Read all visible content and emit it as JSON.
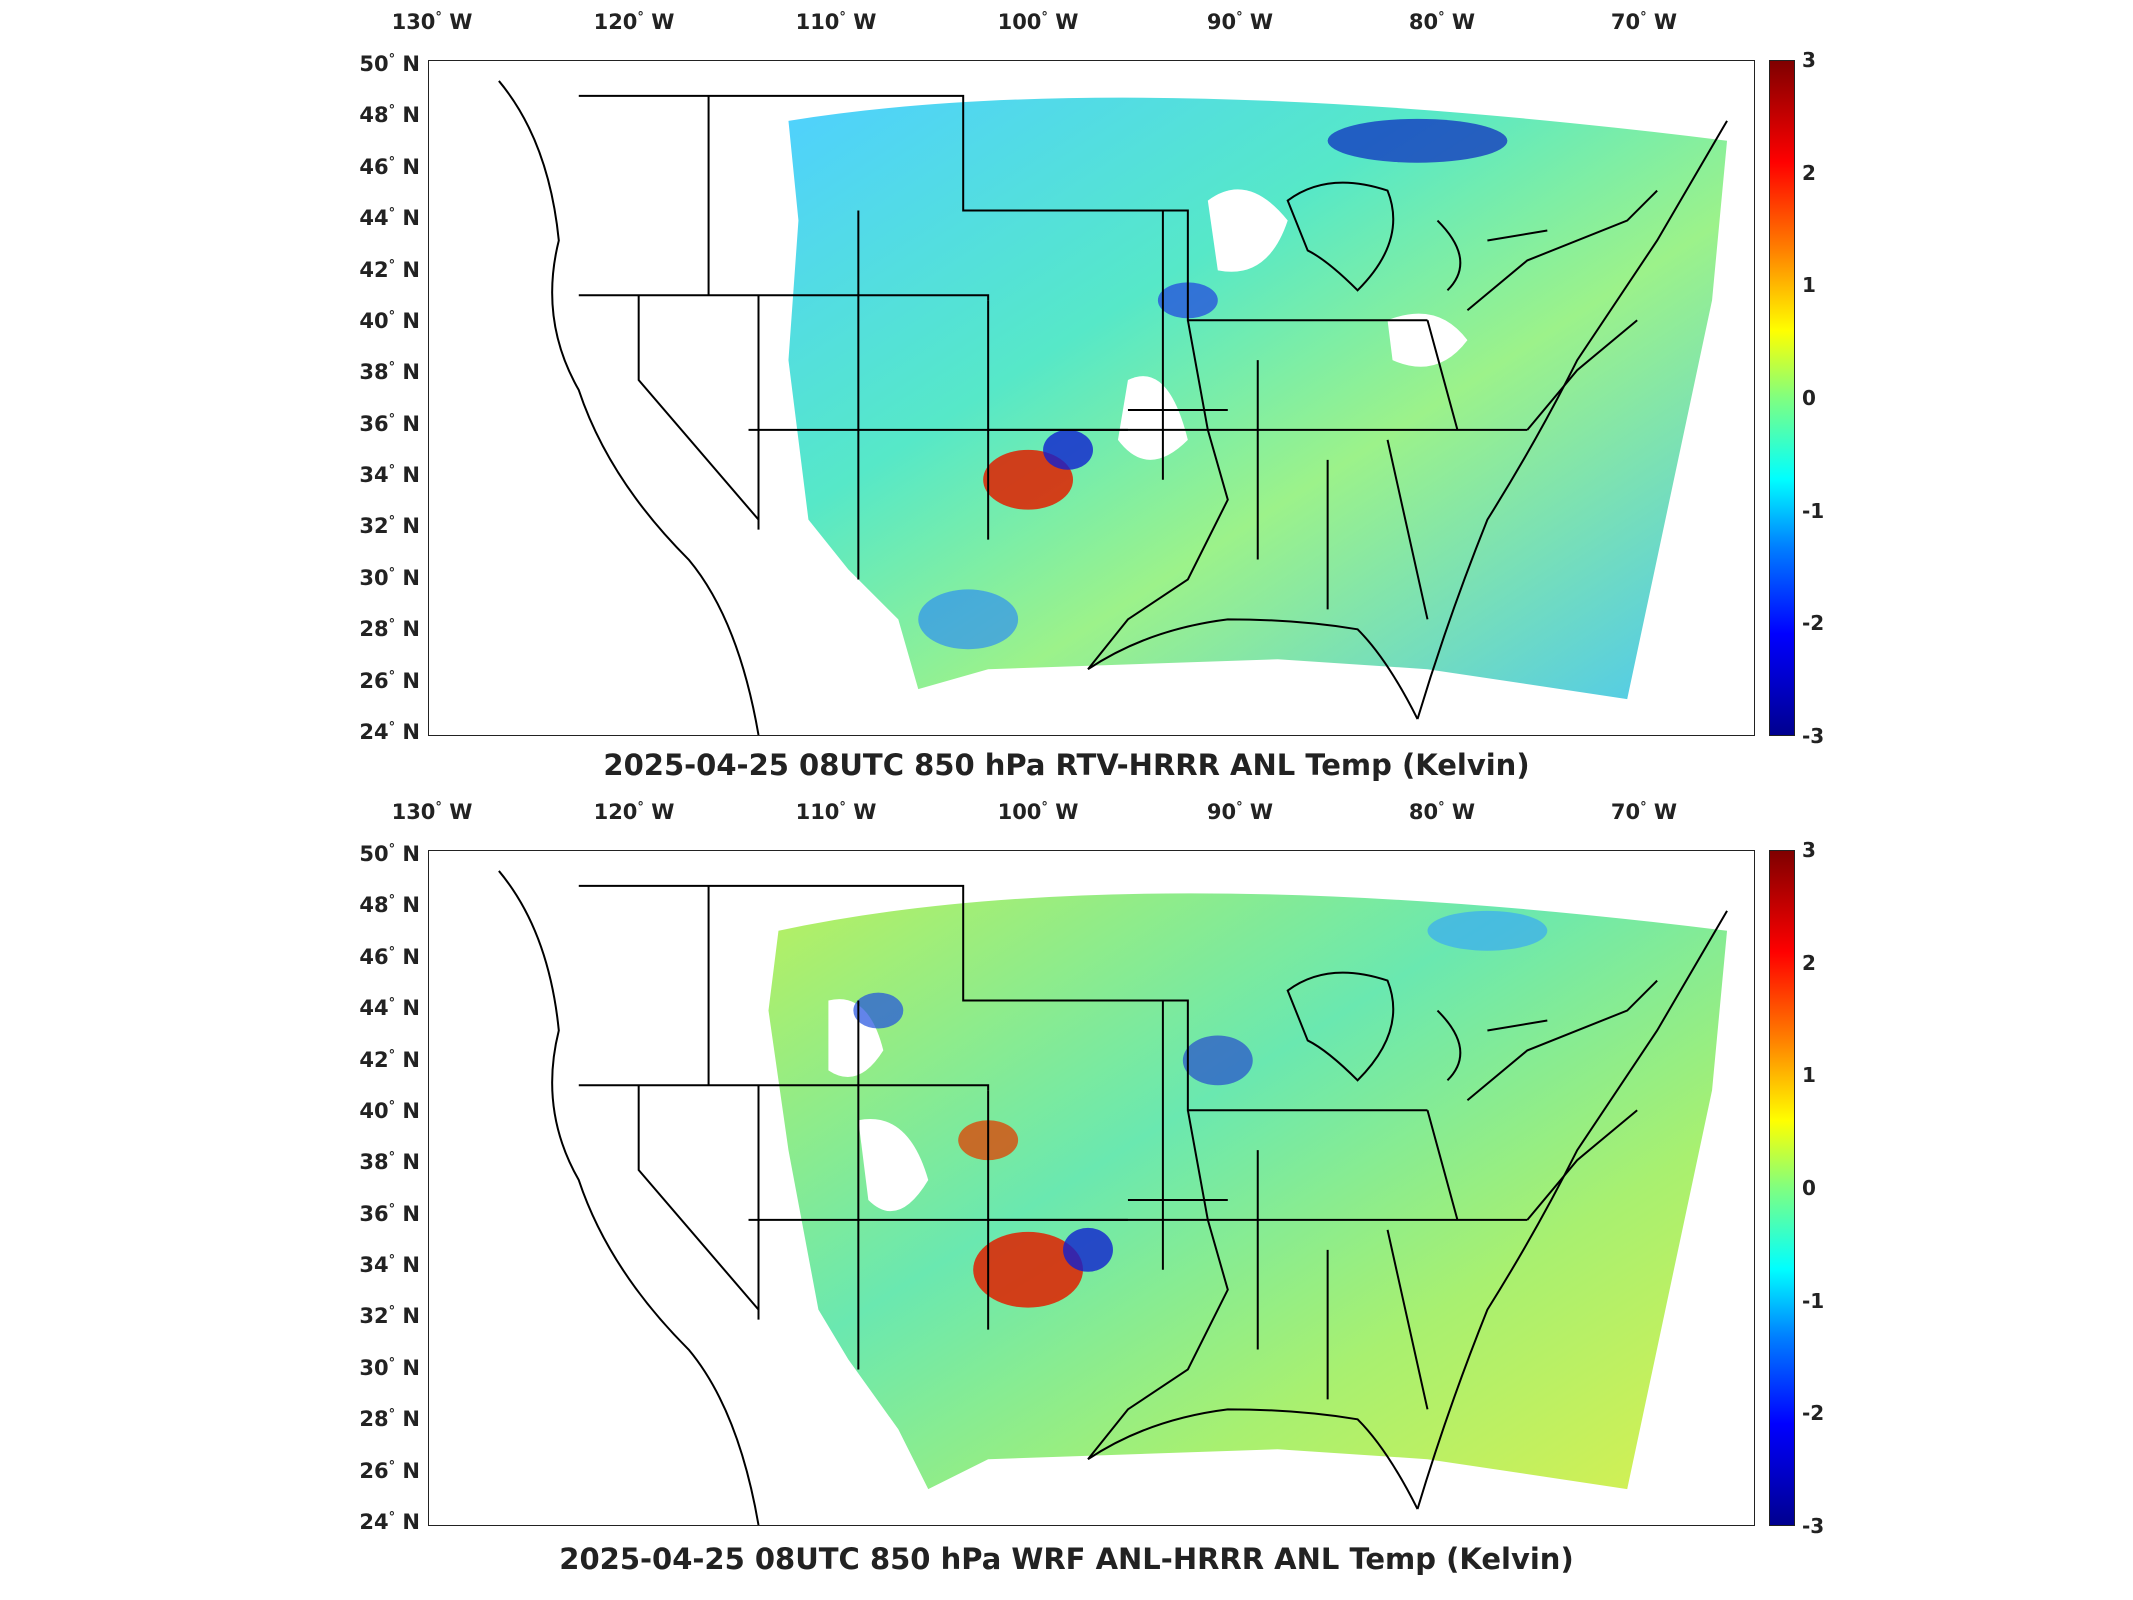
{
  "longitudes": [
    "130",
    "120",
    "110",
    "100",
    "90",
    "80",
    "70"
  ],
  "lon_suffix": "W",
  "latitudes": [
    "50",
    "48",
    "46",
    "44",
    "42",
    "40",
    "38",
    "36",
    "34",
    "32",
    "30",
    "28",
    "26",
    "24"
  ],
  "lat_suffix": "N",
  "colorbar_ticks": [
    "3",
    "2",
    "1",
    "0",
    "-1",
    "-2",
    "-3"
  ],
  "colorbar_range": [
    -3,
    3
  ],
  "colormap": "jet",
  "colors": {
    "frame": "#222222",
    "borders": "#000000",
    "warm": "#e03000",
    "cool": "#0030e0",
    "neutral": "#60ffa0"
  },
  "panels": [
    {
      "title": "2025-04-25 08UTC 850 hPa RTV-HRRR ANL Temp (Kelvin)"
    },
    {
      "title": "2025-04-25 08UTC 850 hPa WRF ANL-HRRR ANL Temp (Kelvin)"
    }
  ]
}
